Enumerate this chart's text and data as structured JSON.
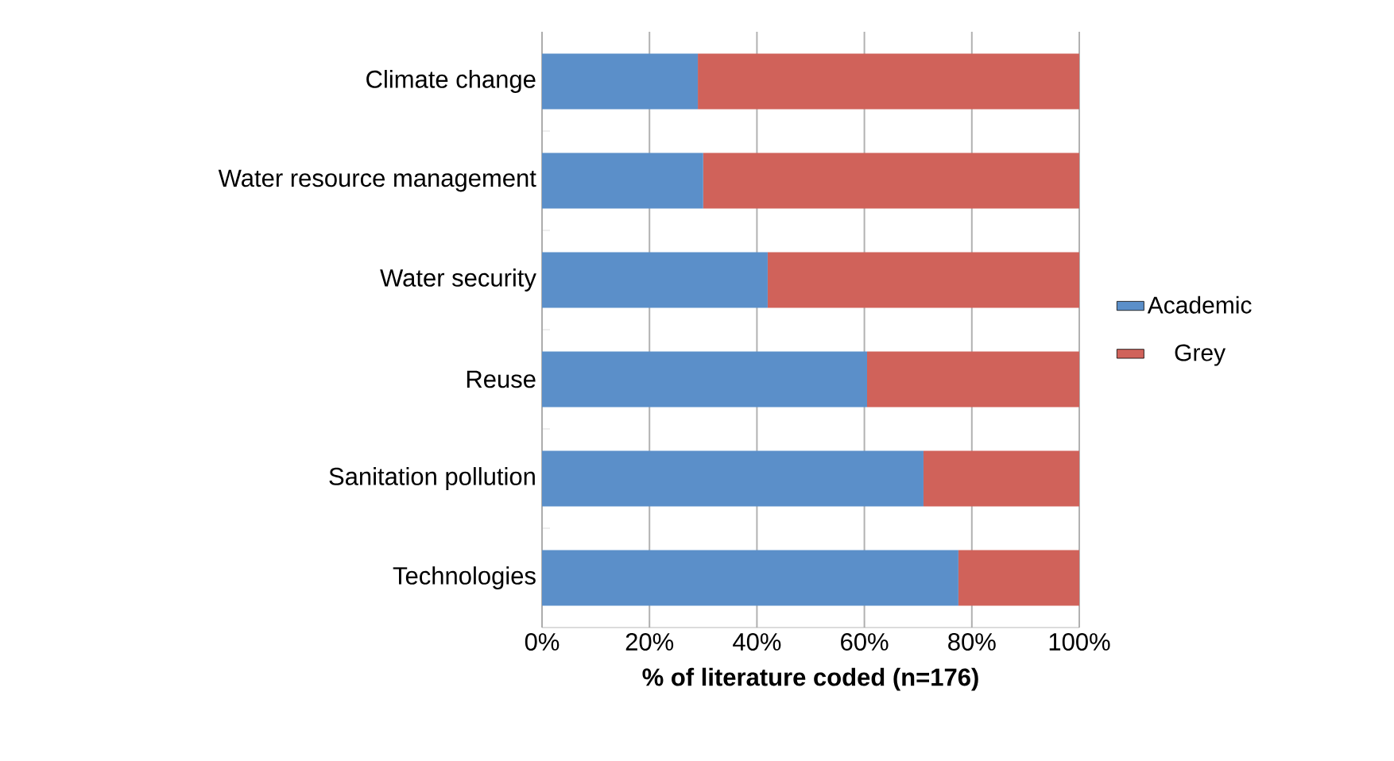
{
  "chart_data": {
    "type": "bar",
    "orientation": "horizontal",
    "stacked": true,
    "categories": [
      "Climate change",
      "Water resource management",
      "Water security",
      "Reuse",
      "Sanitation pollution",
      "Technologies"
    ],
    "series": [
      {
        "name": "Academic",
        "color": "#5b8fc9",
        "values": [
          29,
          30,
          42,
          60.5,
          71,
          77.5
        ]
      },
      {
        "name": "Grey",
        "color": "#d0625a",
        "values": [
          71,
          70,
          58,
          39.5,
          29,
          22.5
        ]
      }
    ],
    "xlim": [
      0,
      100
    ],
    "xticks": [
      {
        "value": 0,
        "label": "0%"
      },
      {
        "value": 20,
        "label": "20%"
      },
      {
        "value": 40,
        "label": "40%"
      },
      {
        "value": 60,
        "label": "60%"
      },
      {
        "value": 80,
        "label": "80%"
      },
      {
        "value": 100,
        "label": "100%"
      }
    ],
    "xlabel": "% of literature coded (n=176)",
    "grid": "x",
    "legend": "right"
  }
}
